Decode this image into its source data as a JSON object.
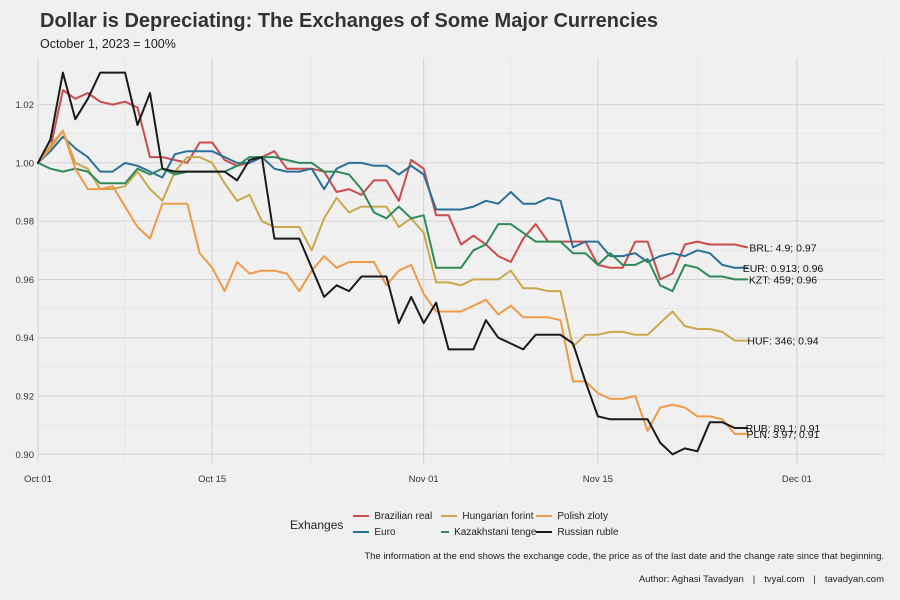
{
  "title": "Dollar is Depreciating: The Exchanges of Some Major Currencies",
  "subtitle": "October 1, 2023 = 100%",
  "legend_title": "Exhanges",
  "note": "The information at the end shows the exchange code, the price as of the last date and the change rate since that beginning.",
  "credits": {
    "author": "Author: Aghasi Tavadyan",
    "site1": "tvyal.com",
    "site2": "tavadyan.com",
    "separator": "|"
  },
  "chart_data": {
    "type": "line",
    "title": "Dollar is Depreciating: The Exchanges of Some Major Currencies",
    "subtitle": "October 1, 2023 = 100%",
    "xlabel": "",
    "ylabel": "",
    "x_axis": "date",
    "xlim": [
      "2023-10-01",
      "2023-12-08"
    ],
    "ylim": [
      0.897,
      1.036
    ],
    "x_ticks": [
      {
        "date": "2023-10-01",
        "label": "Oct 01"
      },
      {
        "date": "2023-10-15",
        "label": "Oct 15"
      },
      {
        "date": "2023-11-01",
        "label": "Nov 01"
      },
      {
        "date": "2023-11-15",
        "label": "Nov 15"
      },
      {
        "date": "2023-12-01",
        "label": "Dec 01"
      }
    ],
    "y_ticks": [
      0.9,
      0.92,
      0.94,
      0.96,
      0.98,
      1.0,
      1.02
    ],
    "y_tick_labels": [
      "0.90",
      "0.92",
      "0.94",
      "0.96",
      "0.98",
      "1.00",
      "1.02"
    ],
    "grid": true,
    "legend_position": "bottom",
    "series": [
      {
        "name": "Brazilian real",
        "color": "#cc4b4b",
        "end_label": "BRL:  4.9; 0.97",
        "x": [
          "2023-10-01",
          "2023-10-02",
          "2023-10-03",
          "2023-10-04",
          "2023-10-05",
          "2023-10-06",
          "2023-10-07",
          "2023-10-08",
          "2023-10-09",
          "2023-10-10",
          "2023-10-11",
          "2023-10-12",
          "2023-10-13",
          "2023-10-14",
          "2023-10-15",
          "2023-10-16",
          "2023-10-17",
          "2023-10-18",
          "2023-10-19",
          "2023-10-20",
          "2023-10-21",
          "2023-10-22",
          "2023-10-23",
          "2023-10-24",
          "2023-10-25",
          "2023-10-26",
          "2023-10-27",
          "2023-10-28",
          "2023-10-29",
          "2023-10-30",
          "2023-10-31",
          "2023-11-01",
          "2023-11-02",
          "2023-11-03",
          "2023-11-04",
          "2023-11-05",
          "2023-11-06",
          "2023-11-07",
          "2023-11-08",
          "2023-11-09",
          "2023-11-10",
          "2023-11-11",
          "2023-11-12",
          "2023-11-13",
          "2023-11-14",
          "2023-11-15",
          "2023-11-16",
          "2023-11-17",
          "2023-11-18",
          "2023-11-19",
          "2023-11-20",
          "2023-11-21",
          "2023-11-22",
          "2023-11-23",
          "2023-11-24",
          "2023-11-25",
          "2023-11-26",
          "2023-11-27"
        ],
        "y": [
          1.0,
          1.005,
          1.025,
          1.022,
          1.024,
          1.021,
          1.02,
          1.021,
          1.019,
          1.002,
          1.002,
          1.001,
          1.0,
          1.007,
          1.007,
          1.001,
          0.999,
          1.0,
          1.002,
          1.004,
          0.998,
          0.998,
          0.998,
          0.997,
          0.99,
          0.991,
          0.989,
          0.994,
          0.994,
          0.987,
          1.001,
          0.998,
          0.982,
          0.982,
          0.972,
          0.975,
          0.972,
          0.968,
          0.966,
          0.974,
          0.979,
          0.973,
          0.973,
          0.973,
          0.973,
          0.965,
          0.964,
          0.964,
          0.973,
          0.973,
          0.96,
          0.962,
          0.972,
          0.973,
          0.972,
          0.972,
          0.972,
          0.971
        ]
      },
      {
        "name": "Euro",
        "color": "#2a6f97",
        "end_label": "EUR: 0.913; 0.96",
        "x": [
          "2023-10-01",
          "2023-10-02",
          "2023-10-03",
          "2023-10-04",
          "2023-10-05",
          "2023-10-06",
          "2023-10-07",
          "2023-10-08",
          "2023-10-09",
          "2023-10-10",
          "2023-10-11",
          "2023-10-12",
          "2023-10-13",
          "2023-10-14",
          "2023-10-15",
          "2023-10-16",
          "2023-10-17",
          "2023-10-18",
          "2023-10-19",
          "2023-10-20",
          "2023-10-21",
          "2023-10-22",
          "2023-10-23",
          "2023-10-24",
          "2023-10-25",
          "2023-10-26",
          "2023-10-27",
          "2023-10-28",
          "2023-10-29",
          "2023-10-30",
          "2023-10-31",
          "2023-11-01",
          "2023-11-02",
          "2023-11-03",
          "2023-11-04",
          "2023-11-05",
          "2023-11-06",
          "2023-11-07",
          "2023-11-08",
          "2023-11-09",
          "2023-11-10",
          "2023-11-11",
          "2023-11-12",
          "2023-11-13",
          "2023-11-14",
          "2023-11-15",
          "2023-11-16",
          "2023-11-17",
          "2023-11-18",
          "2023-11-19",
          "2023-11-20",
          "2023-11-21",
          "2023-11-22",
          "2023-11-23",
          "2023-11-24",
          "2023-11-25",
          "2023-11-26",
          "2023-11-27"
        ],
        "y": [
          1.0,
          1.004,
          1.009,
          1.005,
          1.002,
          0.997,
          0.997,
          1.0,
          0.999,
          0.997,
          0.995,
          1.003,
          1.004,
          1.004,
          1.004,
          1.002,
          1.0,
          1.0,
          1.002,
          0.998,
          0.997,
          0.997,
          0.998,
          0.991,
          0.998,
          1.0,
          1.0,
          0.999,
          0.999,
          0.996,
          0.999,
          0.996,
          0.984,
          0.984,
          0.984,
          0.985,
          0.987,
          0.986,
          0.99,
          0.986,
          0.986,
          0.988,
          0.987,
          0.971,
          0.973,
          0.973,
          0.968,
          0.968,
          0.969,
          0.966,
          0.968,
          0.969,
          0.968,
          0.97,
          0.969,
          0.965,
          0.964,
          0.964
        ]
      },
      {
        "name": "Hungarian forint",
        "color": "#c9a84c",
        "end_label": "HUF:  346; 0.94",
        "x": [
          "2023-10-01",
          "2023-10-02",
          "2023-10-03",
          "2023-10-04",
          "2023-10-05",
          "2023-10-06",
          "2023-10-07",
          "2023-10-08",
          "2023-10-09",
          "2023-10-10",
          "2023-10-11",
          "2023-10-12",
          "2023-10-13",
          "2023-10-14",
          "2023-10-15",
          "2023-10-16",
          "2023-10-17",
          "2023-10-18",
          "2023-10-19",
          "2023-10-20",
          "2023-10-21",
          "2023-10-22",
          "2023-10-23",
          "2023-10-24",
          "2023-10-25",
          "2023-10-26",
          "2023-10-27",
          "2023-10-28",
          "2023-10-29",
          "2023-10-30",
          "2023-10-31",
          "2023-11-01",
          "2023-11-02",
          "2023-11-03",
          "2023-11-04",
          "2023-11-05",
          "2023-11-06",
          "2023-11-07",
          "2023-11-08",
          "2023-11-09",
          "2023-11-10",
          "2023-11-11",
          "2023-11-12",
          "2023-11-13",
          "2023-11-14",
          "2023-11-15",
          "2023-11-16",
          "2023-11-17",
          "2023-11-18",
          "2023-11-19",
          "2023-11-20",
          "2023-11-21",
          "2023-11-22",
          "2023-11-23",
          "2023-11-24",
          "2023-11-25",
          "2023-11-26",
          "2023-11-27"
        ],
        "y": [
          1.0,
          1.006,
          1.011,
          1.0,
          0.998,
          0.991,
          0.991,
          0.992,
          0.997,
          0.991,
          0.987,
          0.997,
          1.002,
          1.002,
          1.0,
          0.993,
          0.987,
          0.989,
          0.98,
          0.978,
          0.978,
          0.978,
          0.97,
          0.981,
          0.988,
          0.983,
          0.985,
          0.985,
          0.985,
          0.978,
          0.981,
          0.976,
          0.959,
          0.959,
          0.958,
          0.96,
          0.96,
          0.96,
          0.963,
          0.957,
          0.957,
          0.956,
          0.956,
          0.937,
          0.941,
          0.941,
          0.942,
          0.942,
          0.941,
          0.941,
          0.945,
          0.949,
          0.944,
          0.943,
          0.943,
          0.942,
          0.939,
          0.939
        ]
      },
      {
        "name": "Kazakhstani tenge",
        "color": "#2e8b57",
        "end_label": "KZT:  459; 0.96",
        "x": [
          "2023-10-01",
          "2023-10-02",
          "2023-10-03",
          "2023-10-04",
          "2023-10-05",
          "2023-10-06",
          "2023-10-07",
          "2023-10-08",
          "2023-10-09",
          "2023-10-10",
          "2023-10-11",
          "2023-10-12",
          "2023-10-13",
          "2023-10-14",
          "2023-10-15",
          "2023-10-16",
          "2023-10-17",
          "2023-10-18",
          "2023-10-19",
          "2023-10-20",
          "2023-10-21",
          "2023-10-22",
          "2023-10-23",
          "2023-10-24",
          "2023-10-25",
          "2023-10-26",
          "2023-10-27",
          "2023-10-28",
          "2023-10-29",
          "2023-10-30",
          "2023-10-31",
          "2023-11-01",
          "2023-11-02",
          "2023-11-03",
          "2023-11-04",
          "2023-11-05",
          "2023-11-06",
          "2023-11-07",
          "2023-11-08",
          "2023-11-09",
          "2023-11-10",
          "2023-11-11",
          "2023-11-12",
          "2023-11-13",
          "2023-11-14",
          "2023-11-15",
          "2023-11-16",
          "2023-11-17",
          "2023-11-18",
          "2023-11-19",
          "2023-11-20",
          "2023-11-21",
          "2023-11-22",
          "2023-11-23",
          "2023-11-24",
          "2023-11-25",
          "2023-11-26",
          "2023-11-27"
        ],
        "y": [
          1.0,
          0.998,
          0.997,
          0.998,
          0.997,
          0.993,
          0.993,
          0.993,
          0.998,
          0.996,
          0.998,
          0.996,
          0.997,
          0.997,
          0.997,
          0.997,
          0.999,
          1.002,
          1.002,
          1.002,
          1.001,
          1.0,
          1.0,
          0.997,
          0.997,
          0.996,
          0.991,
          0.983,
          0.981,
          0.985,
          0.981,
          0.982,
          0.964,
          0.964,
          0.964,
          0.97,
          0.972,
          0.979,
          0.979,
          0.976,
          0.973,
          0.973,
          0.973,
          0.969,
          0.969,
          0.965,
          0.969,
          0.965,
          0.965,
          0.967,
          0.958,
          0.956,
          0.965,
          0.964,
          0.961,
          0.961,
          0.96,
          0.96
        ]
      },
      {
        "name": "Polish zloty",
        "color": "#f09a48",
        "end_label": "PLN: 3.97; 0.91",
        "x": [
          "2023-10-01",
          "2023-10-02",
          "2023-10-03",
          "2023-10-04",
          "2023-10-05",
          "2023-10-06",
          "2023-10-07",
          "2023-10-08",
          "2023-10-09",
          "2023-10-10",
          "2023-10-11",
          "2023-10-12",
          "2023-10-13",
          "2023-10-14",
          "2023-10-15",
          "2023-10-16",
          "2023-10-17",
          "2023-10-18",
          "2023-10-19",
          "2023-10-20",
          "2023-10-21",
          "2023-10-22",
          "2023-10-23",
          "2023-10-24",
          "2023-10-25",
          "2023-10-26",
          "2023-10-27",
          "2023-10-28",
          "2023-10-29",
          "2023-10-30",
          "2023-10-31",
          "2023-11-01",
          "2023-11-02",
          "2023-11-03",
          "2023-11-04",
          "2023-11-05",
          "2023-11-06",
          "2023-11-07",
          "2023-11-08",
          "2023-11-09",
          "2023-11-10",
          "2023-11-11",
          "2023-11-12",
          "2023-11-13",
          "2023-11-14",
          "2023-11-15",
          "2023-11-16",
          "2023-11-17",
          "2023-11-18",
          "2023-11-19",
          "2023-11-20",
          "2023-11-21",
          "2023-11-22",
          "2023-11-23",
          "2023-11-24",
          "2023-11-25",
          "2023-11-26",
          "2023-11-27"
        ],
        "y": [
          1.0,
          1.005,
          1.011,
          0.998,
          0.991,
          0.991,
          0.992,
          0.985,
          0.978,
          0.974,
          0.986,
          0.986,
          0.986,
          0.969,
          0.964,
          0.956,
          0.966,
          0.962,
          0.963,
          0.963,
          0.962,
          0.956,
          0.963,
          0.968,
          0.964,
          0.966,
          0.966,
          0.966,
          0.958,
          0.963,
          0.965,
          0.955,
          0.949,
          0.949,
          0.949,
          0.951,
          0.953,
          0.948,
          0.951,
          0.947,
          0.947,
          0.947,
          0.946,
          0.925,
          0.925,
          0.921,
          0.919,
          0.919,
          0.92,
          0.908,
          0.916,
          0.917,
          0.916,
          0.913,
          0.913,
          0.912,
          0.907,
          0.907
        ]
      },
      {
        "name": "Russian ruble",
        "color": "#1a1a1a",
        "end_label": "RUB: 89.1; 0.91",
        "x": [
          "2023-10-01",
          "2023-10-02",
          "2023-10-03",
          "2023-10-04",
          "2023-10-05",
          "2023-10-06",
          "2023-10-07",
          "2023-10-08",
          "2023-10-09",
          "2023-10-10",
          "2023-10-11",
          "2023-10-12",
          "2023-10-13",
          "2023-10-14",
          "2023-10-15",
          "2023-10-16",
          "2023-10-17",
          "2023-10-18",
          "2023-10-19",
          "2023-10-20",
          "2023-10-21",
          "2023-10-22",
          "2023-10-23",
          "2023-10-24",
          "2023-10-25",
          "2023-10-26",
          "2023-10-27",
          "2023-10-28",
          "2023-10-29",
          "2023-10-30",
          "2023-10-31",
          "2023-11-01",
          "2023-11-02",
          "2023-11-03",
          "2023-11-04",
          "2023-11-05",
          "2023-11-06",
          "2023-11-07",
          "2023-11-08",
          "2023-11-09",
          "2023-11-10",
          "2023-11-11",
          "2023-11-12",
          "2023-11-13",
          "2023-11-14",
          "2023-11-15",
          "2023-11-16",
          "2023-11-17",
          "2023-11-18",
          "2023-11-19",
          "2023-11-20",
          "2023-11-21",
          "2023-11-22",
          "2023-11-23",
          "2023-11-24",
          "2023-11-25",
          "2023-11-26",
          "2023-11-27"
        ],
        "y": [
          1.0,
          1.008,
          1.031,
          1.015,
          1.022,
          1.031,
          1.031,
          1.031,
          1.013,
          1.024,
          0.998,
          0.997,
          0.997,
          0.997,
          0.997,
          0.997,
          0.994,
          1.001,
          1.002,
          0.974,
          0.974,
          0.974,
          0.964,
          0.954,
          0.958,
          0.956,
          0.961,
          0.961,
          0.961,
          0.945,
          0.954,
          0.945,
          0.952,
          0.936,
          0.936,
          0.936,
          0.946,
          0.94,
          0.938,
          0.936,
          0.941,
          0.941,
          0.941,
          0.938,
          0.925,
          0.913,
          0.912,
          0.912,
          0.912,
          0.912,
          0.904,
          0.9,
          0.902,
          0.901,
          0.911,
          0.911,
          0.909,
          0.909
        ]
      }
    ]
  }
}
